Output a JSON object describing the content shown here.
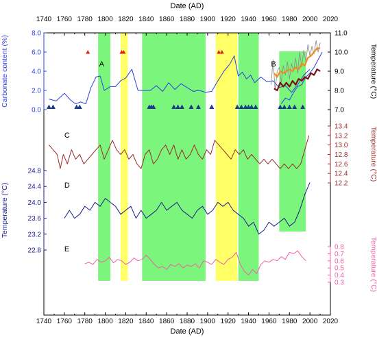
{
  "chart_data": {
    "type": "line",
    "xlabel": "Date (AD)",
    "xlim": [
      1740,
      2020
    ],
    "xticks": [
      1740,
      1760,
      1780,
      1800,
      1820,
      1840,
      1860,
      1880,
      1900,
      1920,
      1940,
      1960,
      1980,
      2000,
      2020
    ],
    "colors": {
      "green_band": "#7CF57C",
      "yellow_band": "#FFFF66",
      "A": "#2B3FE0",
      "B_gray": "#909090",
      "B_orange": "#F08C1E",
      "B_dark": "#7A1010",
      "B_blue": "#2B3FE0",
      "C": "#9B2A2A",
      "D": "#1A1A8C",
      "E": "#F060A8",
      "triangle_red": "#E02020",
      "triangle_blue": "#1A3A8C"
    },
    "green_bands": [
      [
        1793,
        1805
      ],
      [
        1836,
        1898
      ],
      [
        1930,
        1950
      ],
      [
        1970,
        1996
      ]
    ],
    "yellow_bands": [
      [
        1815,
        1822
      ],
      [
        1908,
        1929
      ]
    ],
    "axes": {
      "carbonate": {
        "label": "Carbonate content (%)",
        "ticks": [
          "0.0",
          "2.0",
          "4.0",
          "6.0",
          "8.0"
        ],
        "min": 0,
        "max": 8
      },
      "tempB": {
        "label": "Temperature (°C)",
        "ticks": [
          "7.0",
          "8.0",
          "9.0",
          "10.0",
          "11.0"
        ],
        "min": 7,
        "max": 11
      },
      "tempC": {
        "label": "Temperature (°C)",
        "ticks": [
          "12.2",
          "12.4",
          "12.6",
          "12.8",
          "13.0",
          "13.2",
          "13.4"
        ],
        "min": 12.2,
        "max": 13.4
      },
      "tempD": {
        "label": "Temperature (°C)",
        "ticks": [
          "22.8",
          "23.2",
          "23.6",
          "24.0",
          "24.4",
          "24.8"
        ],
        "min": 22.8,
        "max": 24.8
      },
      "tempE": {
        "label": "Temperature (°C)",
        "ticks": [
          "0.3",
          "0.4",
          "0.5",
          "0.6",
          "0.7",
          "0.8"
        ],
        "min": 0.3,
        "max": 0.8
      }
    },
    "panel_labels": [
      {
        "text": "A",
        "x": 1794
      },
      {
        "text": "B",
        "x": 1962
      },
      {
        "text": "C",
        "x": 1760
      },
      {
        "text": "D",
        "x": 1760
      },
      {
        "text": "E",
        "x": 1760
      }
    ],
    "series": [
      {
        "id": "A",
        "axis": "carbonate",
        "x": [
          1745,
          1752,
          1760,
          1766,
          1771,
          1776,
          1781,
          1786,
          1791,
          1795,
          1799,
          1805,
          1810,
          1815,
          1820,
          1826,
          1832,
          1838,
          1844,
          1850,
          1856,
          1862,
          1868,
          1874,
          1880,
          1886,
          1892,
          1898,
          1904,
          1910,
          1916,
          1922,
          1926,
          1930,
          1934,
          1938,
          1942,
          1946,
          1952,
          1958,
          1964,
          1970,
          1976,
          1982,
          1988,
          1994,
          2000
        ],
        "y": [
          1.1,
          0.9,
          1.7,
          1.0,
          0.6,
          0.8,
          0.6,
          2.3,
          3.4,
          3.5,
          2.0,
          2.4,
          2.4,
          3.0,
          3.3,
          4.2,
          2.0,
          2.0,
          2.0,
          2.5,
          1.9,
          2.8,
          2.1,
          2.7,
          2.3,
          1.9,
          2.0,
          1.8,
          1.9,
          3.0,
          4.0,
          4.8,
          5.6,
          3.5,
          3.9,
          3.2,
          3.6,
          2.8,
          3.4,
          2.9,
          3.0,
          2.3,
          2.5,
          1.8,
          2.6,
          3.6,
          4.2
        ]
      },
      {
        "id": "B_gray",
        "axis": "tempB",
        "x": [
          1962,
          1964,
          1966,
          1968,
          1970,
          1972,
          1974,
          1976,
          1978,
          1980,
          1982,
          1984,
          1986,
          1988,
          1990,
          1992,
          1994,
          1996,
          1998,
          2000,
          2002,
          2004,
          2006,
          2008,
          2010
        ],
        "y": [
          8.3,
          9.6,
          8.0,
          9.0,
          9.2,
          8.4,
          9.3,
          8.8,
          9.5,
          8.6,
          9.4,
          9.0,
          9.7,
          8.9,
          10.0,
          9.2,
          10.1,
          9.5,
          10.4,
          9.8,
          10.3,
          9.9,
          10.6,
          10.0,
          10.5
        ]
      },
      {
        "id": "B_orange",
        "axis": "tempB",
        "x": [
          1965,
          1968,
          1971,
          1974,
          1977,
          1980,
          1983,
          1986,
          1989,
          1992,
          1995,
          1998,
          2001,
          2004,
          2007,
          2010
        ],
        "y": [
          8.9,
          8.7,
          9.0,
          8.9,
          9.0,
          9.1,
          9.0,
          9.2,
          9.1,
          9.4,
          9.3,
          9.7,
          9.8,
          10.0,
          10.2,
          10.2
        ]
      },
      {
        "id": "B_dark",
        "axis": "tempB",
        "x": [
          1965,
          1968,
          1971,
          1974,
          1977,
          1980,
          1983,
          1986,
          1989,
          1992,
          1995,
          1998,
          2001,
          2004,
          2007,
          2010
        ],
        "y": [
          8.1,
          8.0,
          8.4,
          8.2,
          8.4,
          8.2,
          8.5,
          8.3,
          8.6,
          8.5,
          8.7,
          8.6,
          8.9,
          8.8,
          9.1,
          9.0
        ]
      },
      {
        "id": "B_blue",
        "axis": "tempB",
        "x": [
          1972,
          1976,
          1980,
          1984,
          1988,
          1992,
          1996,
          2000,
          2004,
          2008,
          2012
        ],
        "y": [
          7.3,
          7.6,
          7.5,
          7.9,
          8.2,
          8.3,
          8.7,
          8.9,
          9.2,
          9.6,
          10.0
        ]
      },
      {
        "id": "C",
        "axis": "tempC",
        "x": [
          1745,
          1749,
          1753,
          1756,
          1759,
          1763,
          1767,
          1771,
          1775,
          1779,
          1783,
          1787,
          1791,
          1795,
          1799,
          1803,
          1807,
          1811,
          1815,
          1819,
          1823,
          1827,
          1831,
          1835,
          1839,
          1843,
          1847,
          1851,
          1855,
          1859,
          1863,
          1867,
          1871,
          1875,
          1879,
          1883,
          1887,
          1891,
          1895,
          1899,
          1903,
          1907,
          1911,
          1915,
          1919,
          1923,
          1927,
          1931,
          1935,
          1939,
          1943,
          1947,
          1951,
          1955,
          1959,
          1963,
          1967,
          1971,
          1975,
          1979,
          1983,
          1987,
          1991,
          1995,
          1999
        ],
        "y": [
          13.0,
          12.9,
          12.8,
          12.5,
          12.8,
          12.6,
          12.9,
          12.7,
          12.8,
          12.6,
          12.7,
          12.8,
          12.9,
          13.0,
          12.7,
          12.9,
          13.1,
          12.9,
          12.8,
          12.9,
          12.7,
          12.8,
          12.6,
          12.5,
          12.8,
          12.9,
          12.6,
          12.7,
          12.9,
          13.0,
          12.8,
          13.0,
          12.7,
          12.9,
          12.7,
          12.8,
          13.0,
          12.8,
          12.7,
          12.9,
          12.8,
          13.1,
          13.0,
          12.9,
          12.8,
          12.7,
          12.9,
          12.8,
          12.9,
          12.7,
          12.8,
          12.7,
          12.6,
          12.7,
          12.6,
          12.7,
          12.6,
          12.5,
          12.6,
          12.5,
          12.6,
          12.5,
          12.6,
          12.9,
          13.2
        ]
      },
      {
        "id": "D",
        "axis": "tempD",
        "x": [
          1760,
          1765,
          1770,
          1775,
          1780,
          1785,
          1790,
          1795,
          1800,
          1805,
          1810,
          1815,
          1820,
          1825,
          1830,
          1835,
          1840,
          1845,
          1850,
          1855,
          1860,
          1865,
          1870,
          1875,
          1880,
          1885,
          1890,
          1895,
          1900,
          1905,
          1910,
          1915,
          1920,
          1925,
          1930,
          1935,
          1940,
          1945,
          1950,
          1955,
          1960,
          1965,
          1970,
          1975,
          1980,
          1985,
          1990,
          1995,
          2000
        ],
        "y": [
          23.6,
          23.8,
          23.6,
          23.7,
          23.9,
          23.8,
          24.0,
          23.9,
          24.1,
          24.0,
          23.9,
          23.7,
          23.8,
          23.9,
          23.6,
          23.8,
          23.6,
          23.7,
          23.8,
          24.0,
          23.8,
          23.9,
          24.0,
          23.8,
          23.7,
          23.6,
          23.8,
          23.9,
          23.7,
          23.8,
          24.0,
          23.9,
          24.0,
          23.8,
          23.7,
          23.6,
          23.4,
          23.5,
          23.2,
          23.3,
          23.5,
          23.4,
          23.5,
          23.6,
          23.4,
          23.5,
          23.8,
          24.2,
          24.5
        ]
      },
      {
        "id": "E",
        "axis": "tempE",
        "x": [
          1780,
          1784,
          1788,
          1792,
          1796,
          1800,
          1804,
          1808,
          1812,
          1816,
          1820,
          1824,
          1828,
          1832,
          1836,
          1840,
          1844,
          1848,
          1852,
          1856,
          1860,
          1864,
          1868,
          1872,
          1876,
          1880,
          1884,
          1888,
          1892,
          1896,
          1900,
          1904,
          1908,
          1912,
          1916,
          1920,
          1924,
          1928,
          1932,
          1936,
          1940,
          1944,
          1948,
          1952,
          1956,
          1960,
          1964,
          1968,
          1972,
          1976,
          1980,
          1984,
          1988,
          1992,
          1996
        ],
        "y": [
          0.56,
          0.58,
          0.55,
          0.62,
          0.58,
          0.6,
          0.65,
          0.57,
          0.62,
          0.6,
          0.55,
          0.58,
          0.64,
          0.6,
          0.62,
          0.68,
          0.62,
          0.55,
          0.5,
          0.52,
          0.48,
          0.55,
          0.52,
          0.56,
          0.5,
          0.54,
          0.52,
          0.56,
          0.5,
          0.6,
          0.58,
          0.55,
          0.62,
          0.58,
          0.55,
          0.62,
          0.65,
          0.72,
          0.55,
          0.45,
          0.4,
          0.48,
          0.42,
          0.55,
          0.6,
          0.58,
          0.62,
          0.6,
          0.66,
          0.62,
          0.72,
          0.7,
          0.74,
          0.66,
          0.6
        ]
      }
    ],
    "triangles_red": [
      1783,
      1816,
      1818,
      1911,
      1914
    ],
    "triangles_blue": [
      1745,
      1749,
      1772,
      1775,
      1843,
      1845,
      1847,
      1867,
      1871,
      1875,
      1884,
      1891,
      1904,
      1929,
      1933,
      1937,
      1940,
      1943,
      1947,
      1971,
      1975,
      1980,
      1985,
      1993
    ]
  }
}
